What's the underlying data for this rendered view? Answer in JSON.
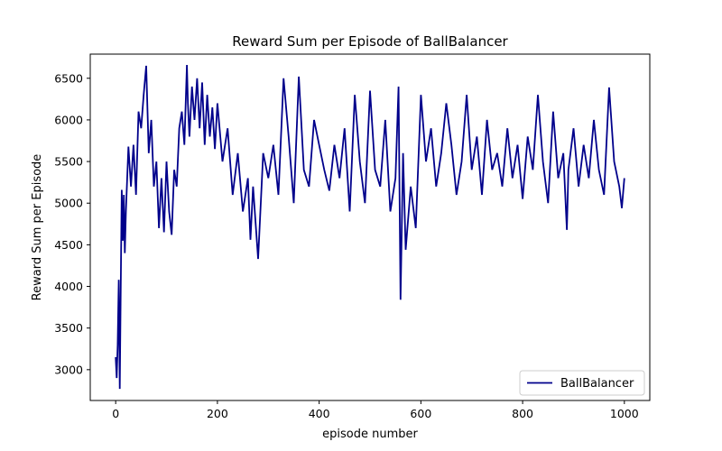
{
  "chart_data": {
    "type": "line",
    "title": "Reward Sum per Episode of BallBalancer",
    "xlabel": "episode number",
    "ylabel": "Reward Sum per Episode",
    "xlim": [
      -50,
      1050
    ],
    "ylim": [
      2630,
      6790
    ],
    "xticks": [
      0,
      200,
      400,
      600,
      800,
      1000
    ],
    "yticks": [
      3000,
      3500,
      4000,
      4500,
      5000,
      5500,
      6000,
      6500
    ],
    "legend": {
      "position": "lower-right",
      "entries": [
        "BallBalancer"
      ]
    },
    "grid": false,
    "series": [
      {
        "name": "BallBalancer",
        "color": "#00008B",
        "x": [
          0,
          2,
          4,
          6,
          8,
          10,
          12,
          14,
          16,
          18,
          20,
          25,
          30,
          35,
          40,
          45,
          50,
          55,
          60,
          65,
          70,
          75,
          80,
          85,
          90,
          95,
          100,
          105,
          110,
          115,
          120,
          125,
          130,
          135,
          140,
          142,
          145,
          150,
          155,
          160,
          165,
          170,
          175,
          180,
          185,
          190,
          195,
          200,
          210,
          220,
          230,
          240,
          250,
          260,
          265,
          270,
          280,
          290,
          300,
          310,
          320,
          330,
          340,
          350,
          360,
          370,
          380,
          390,
          400,
          410,
          420,
          430,
          440,
          450,
          460,
          470,
          480,
          490,
          500,
          510,
          520,
          530,
          540,
          550,
          556,
          560,
          565,
          570,
          580,
          590,
          600,
          610,
          620,
          630,
          640,
          650,
          660,
          670,
          680,
          690,
          700,
          710,
          720,
          730,
          740,
          750,
          760,
          770,
          780,
          790,
          800,
          810,
          820,
          830,
          840,
          850,
          860,
          870,
          880,
          887,
          890,
          900,
          910,
          920,
          930,
          940,
          950,
          960,
          970,
          980,
          990,
          995,
          1000
        ],
        "y": [
          3150,
          2900,
          3300,
          4080,
          2770,
          4000,
          5160,
          4550,
          5100,
          4400,
          4900,
          5680,
          5200,
          5700,
          5100,
          6100,
          5900,
          6300,
          6650,
          5600,
          6000,
          5200,
          5500,
          4700,
          5300,
          4650,
          5500,
          4900,
          4620,
          5400,
          5200,
          5900,
          6100,
          5700,
          6660,
          6200,
          5800,
          6400,
          6000,
          6500,
          5900,
          6450,
          5700,
          6300,
          5800,
          6150,
          5650,
          6200,
          5500,
          5900,
          5100,
          5600,
          4900,
          5300,
          4560,
          5200,
          4330,
          5600,
          5300,
          5700,
          5100,
          6500,
          5800,
          5000,
          6520,
          5400,
          5200,
          6000,
          5700,
          5400,
          5150,
          5700,
          5300,
          5900,
          4900,
          6300,
          5500,
          5000,
          6350,
          5400,
          5200,
          6000,
          4900,
          5300,
          6400,
          3840,
          5600,
          4440,
          5200,
          4700,
          6300,
          5500,
          5900,
          5200,
          5600,
          6200,
          5700,
          5100,
          5500,
          6300,
          5400,
          5800,
          5100,
          6000,
          5400,
          5600,
          5200,
          5900,
          5300,
          5700,
          5050,
          5800,
          5400,
          6300,
          5500,
          5000,
          6100,
          5300,
          5600,
          4680,
          5400,
          5900,
          5200,
          5700,
          5300,
          6000,
          5400,
          5100,
          6390,
          5500,
          5200,
          4940,
          5300
        ]
      }
    ]
  }
}
